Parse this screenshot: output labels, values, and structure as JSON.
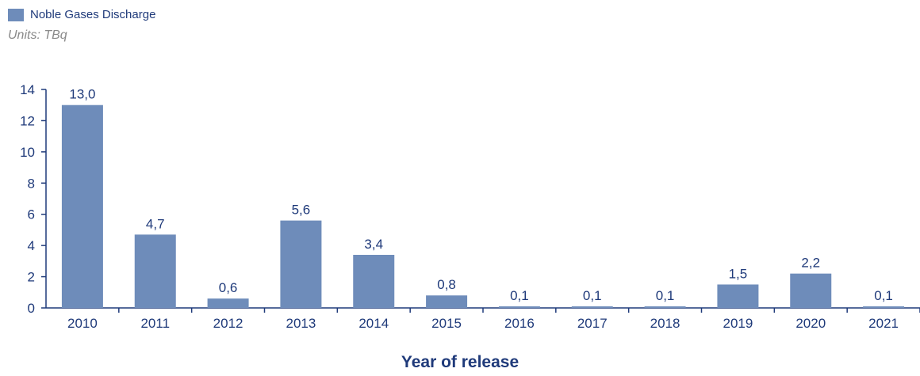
{
  "colors": {
    "bar": "#6e8cba",
    "axis": "#1f3a7a",
    "text": "#1f3a7a",
    "units": "#8a8a8a"
  },
  "legend": {
    "label": "Noble Gases Discharge"
  },
  "units": "Units: TBq",
  "chart_data": {
    "type": "bar",
    "categories": [
      "2010",
      "2011",
      "2012",
      "2013",
      "2014",
      "2015",
      "2016",
      "2017",
      "2018",
      "2019",
      "2020",
      "2021"
    ],
    "series": [
      {
        "name": "Noble Gases Discharge",
        "values": [
          13.0,
          4.7,
          0.6,
          5.6,
          3.4,
          0.8,
          0.1,
          0.1,
          0.1,
          1.5,
          2.2,
          0.1
        ],
        "labels": [
          "13,0",
          "4,7",
          "0,6",
          "5,6",
          "3,4",
          "0,8",
          "0,1",
          "0,1",
          "0,1",
          "1,5",
          "2,2",
          "0,1"
        ]
      }
    ],
    "yticks": [
      0,
      2,
      4,
      6,
      8,
      10,
      12,
      14
    ],
    "ylim": [
      0,
      14
    ],
    "xlabel": "Year of release",
    "ylabel": "",
    "grid": false,
    "legend_position": "top-left"
  }
}
